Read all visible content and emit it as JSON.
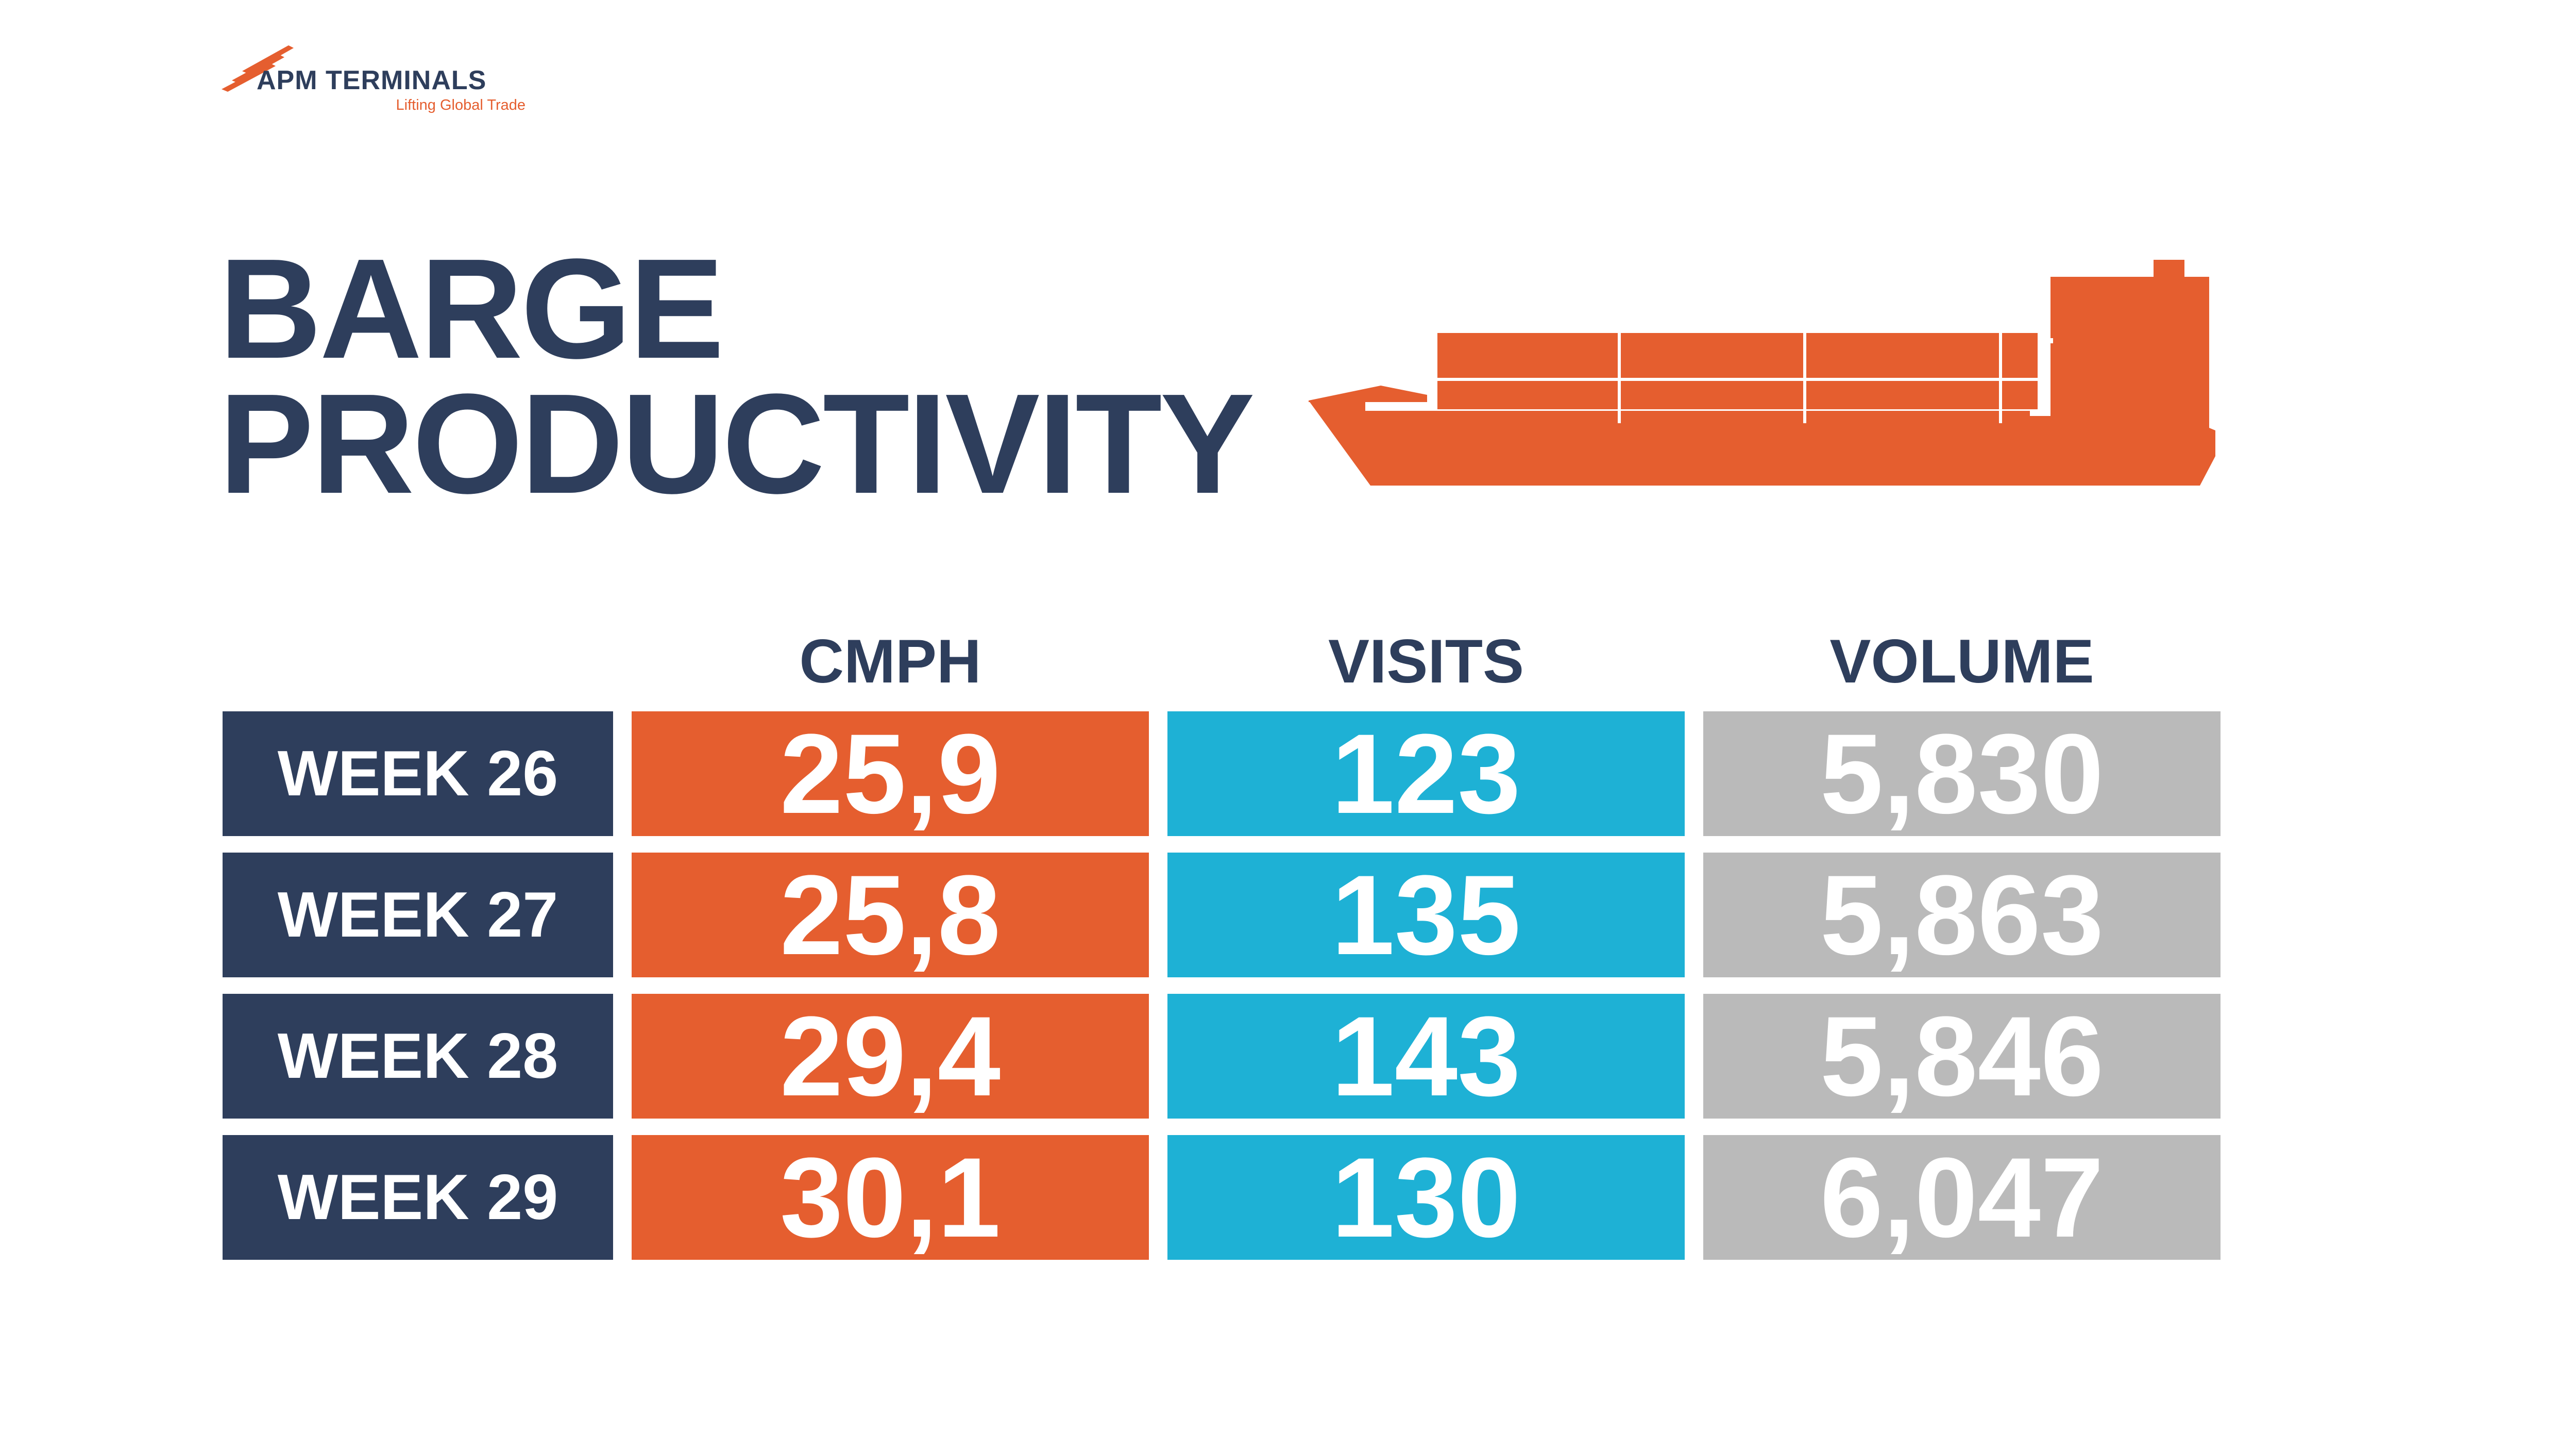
{
  "logo": {
    "name": "APM TERMINALS",
    "tagline": "Lifting Global Trade"
  },
  "title": {
    "line1": "BARGE",
    "line2": "PRODUCTIVITY"
  },
  "colors": {
    "navy": "#2e3e5c",
    "orange": "#e55e2f",
    "cyan": "#1eb1d5",
    "gray": "#bababa"
  },
  "ship_icon": "container-barge-icon",
  "table": {
    "headers": {
      "cmph": "CMPH",
      "visits": "VISITS",
      "volume": "VOLUME"
    },
    "rows": [
      {
        "week": "WEEK 26",
        "cmph": "25,9",
        "visits": "123",
        "volume": "5,830"
      },
      {
        "week": "WEEK 27",
        "cmph": "25,8",
        "visits": "135",
        "volume": "5,863"
      },
      {
        "week": "WEEK 28",
        "cmph": "29,4",
        "visits": "143",
        "volume": "5,846"
      },
      {
        "week": "WEEK 29",
        "cmph": "30,1",
        "visits": "130",
        "volume": "6,047"
      }
    ]
  }
}
